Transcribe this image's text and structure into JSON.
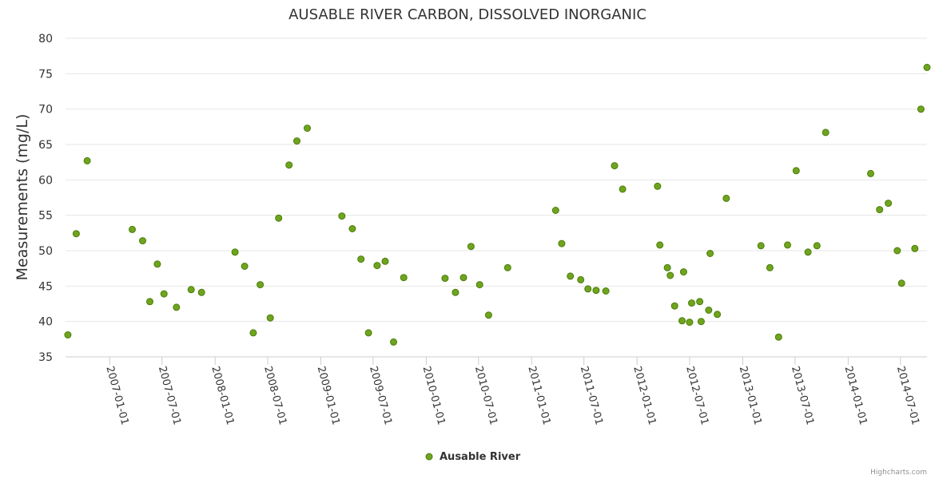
{
  "chart_data": {
    "type": "scatter",
    "title": "AUSABLE RIVER CARBON, DISSOLVED INORGANIC",
    "ylabel": "Measurements (mg/L)",
    "xlabel": "",
    "ylim": [
      35,
      80
    ],
    "yticks": [
      35,
      40,
      45,
      50,
      55,
      60,
      65,
      70,
      75,
      80
    ],
    "xlim": [
      "2006-08-01",
      "2014-10-01"
    ],
    "xticks": [
      "2007-01-01",
      "2007-07-01",
      "2008-01-01",
      "2008-07-01",
      "2009-01-01",
      "2009-07-01",
      "2010-01-01",
      "2010-07-01",
      "2011-01-01",
      "2011-07-01",
      "2012-01-01",
      "2012-07-01",
      "2013-01-01",
      "2013-07-01",
      "2014-01-01",
      "2014-07-01"
    ],
    "grid": true,
    "legend_position": "bottom-center",
    "marker_color": "#6fa51e",
    "marker_edge_color": "#4b7c0a",
    "series": [
      {
        "name": "Ausable River",
        "points": [
          [
            "2006-08-09",
            38.1
          ],
          [
            "2006-09-07",
            52.4
          ],
          [
            "2006-10-15",
            62.7
          ],
          [
            "2007-03-20",
            53.0
          ],
          [
            "2007-04-25",
            51.4
          ],
          [
            "2007-05-20",
            42.8
          ],
          [
            "2007-06-15",
            48.1
          ],
          [
            "2007-07-08",
            43.9
          ],
          [
            "2007-08-20",
            42.0
          ],
          [
            "2007-10-10",
            44.5
          ],
          [
            "2007-11-15",
            44.1
          ],
          [
            "2008-03-10",
            49.8
          ],
          [
            "2008-04-12",
            47.8
          ],
          [
            "2008-05-12",
            38.4
          ],
          [
            "2008-06-05",
            45.2
          ],
          [
            "2008-07-10",
            40.5
          ],
          [
            "2008-08-08",
            54.6
          ],
          [
            "2008-09-13",
            62.1
          ],
          [
            "2008-10-10",
            65.5
          ],
          [
            "2008-11-15",
            67.3
          ],
          [
            "2009-03-15",
            54.9
          ],
          [
            "2009-04-20",
            53.1
          ],
          [
            "2009-05-20",
            48.8
          ],
          [
            "2009-06-15",
            38.4
          ],
          [
            "2009-07-15",
            47.9
          ],
          [
            "2009-08-12",
            48.5
          ],
          [
            "2009-09-10",
            37.1
          ],
          [
            "2009-10-15",
            46.2
          ],
          [
            "2010-03-07",
            46.1
          ],
          [
            "2010-04-12",
            44.1
          ],
          [
            "2010-05-10",
            46.2
          ],
          [
            "2010-06-05",
            50.6
          ],
          [
            "2010-07-05",
            45.2
          ],
          [
            "2010-08-05",
            40.9
          ],
          [
            "2010-10-10",
            47.6
          ],
          [
            "2011-03-25",
            55.7
          ],
          [
            "2011-04-15",
            51.0
          ],
          [
            "2011-05-15",
            46.4
          ],
          [
            "2011-06-20",
            45.9
          ],
          [
            "2011-07-15",
            44.6
          ],
          [
            "2011-08-12",
            44.4
          ],
          [
            "2011-09-15",
            44.3
          ],
          [
            "2011-10-15",
            62.0
          ],
          [
            "2011-11-12",
            58.7
          ],
          [
            "2012-03-12",
            59.1
          ],
          [
            "2012-03-20",
            50.8
          ],
          [
            "2012-04-15",
            47.6
          ],
          [
            "2012-04-25",
            46.5
          ],
          [
            "2012-05-10",
            42.2
          ],
          [
            "2012-06-05",
            40.1
          ],
          [
            "2012-06-10",
            47.0
          ],
          [
            "2012-07-01",
            39.9
          ],
          [
            "2012-07-08",
            42.6
          ],
          [
            "2012-08-05",
            42.8
          ],
          [
            "2012-08-10",
            40.0
          ],
          [
            "2012-09-05",
            41.6
          ],
          [
            "2012-09-10",
            49.6
          ],
          [
            "2012-10-05",
            41.0
          ],
          [
            "2012-11-05",
            57.4
          ],
          [
            "2013-03-05",
            50.7
          ],
          [
            "2013-04-05",
            47.6
          ],
          [
            "2013-05-05",
            37.8
          ],
          [
            "2013-06-05",
            50.8
          ],
          [
            "2013-07-05",
            61.3
          ],
          [
            "2013-08-15",
            49.8
          ],
          [
            "2013-09-15",
            50.7
          ],
          [
            "2013-10-15",
            66.7
          ],
          [
            "2014-03-20",
            60.9
          ],
          [
            "2014-04-20",
            55.8
          ],
          [
            "2014-05-20",
            56.7
          ],
          [
            "2014-06-20",
            50.0
          ],
          [
            "2014-07-05",
            45.4
          ],
          [
            "2014-08-20",
            50.3
          ],
          [
            "2014-09-10",
            70.0
          ],
          [
            "2014-10-01",
            75.9
          ]
        ]
      }
    ]
  },
  "credit": "Highcharts.com"
}
